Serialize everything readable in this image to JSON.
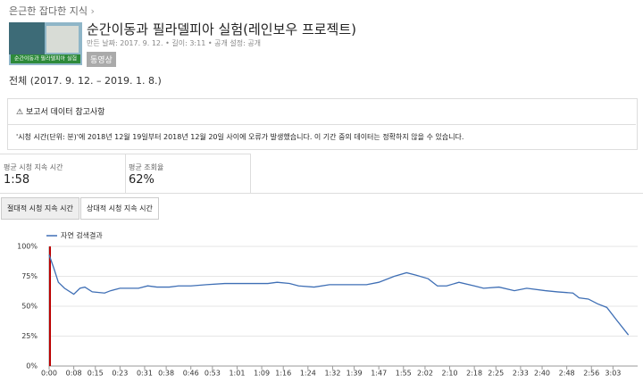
{
  "header": {
    "breadcrumb": "은근한 잡다한 지식",
    "video_title": "순간이동과 필라델피아 실험(레인보우 프로젝트)",
    "meta": "만든 날짜: 2017. 9. 12. • 길이: 3:11 • 공개 설정: 공개",
    "badge": "동영상",
    "thumbnail_caption": "순간이동과 필라델피아 실험"
  },
  "date_range": "전체 (2017. 9. 12. – 2019. 1. 8.)",
  "notice": {
    "title": "보고서 데이터 참고사항",
    "body": "'시청 시간(단위: 분)'에 2018년 12월 19일부터 2018년 12월 20일 사이에 오류가 발생했습니다. 이 기간 중의 데이터는 정확하지 않을 수 있습니다."
  },
  "metrics": [
    {
      "label": "평균 시청 지속 시간",
      "value": "1:58"
    },
    {
      "label": "평균 조회율",
      "value": "62%"
    }
  ],
  "tabs": [
    "절대적 시청 지속 시간",
    "상대적 시청 지속 시간"
  ],
  "chart_data": {
    "type": "line",
    "x": [
      0,
      1.5,
      3,
      5,
      8,
      10,
      11.6,
      14,
      18,
      20,
      23,
      29,
      32,
      35,
      39,
      42,
      46,
      51,
      57,
      62,
      71,
      74,
      78,
      81,
      86,
      91,
      96,
      103,
      107,
      112,
      116,
      119,
      123,
      126,
      129,
      133,
      138,
      141,
      146,
      151,
      155,
      161,
      165,
      170,
      172,
      175,
      178,
      181,
      184,
      188
    ],
    "series": [
      {
        "name": "자연 검색결과",
        "color": "#3f6fb5",
        "values": [
          93,
          82,
          70,
          65,
          60,
          65,
          66,
          62,
          61,
          63,
          65,
          65,
          67,
          66,
          66,
          67,
          67,
          68,
          69,
          69,
          69,
          70,
          69,
          67,
          66,
          68,
          68,
          68,
          70,
          75,
          78,
          76,
          73,
          67,
          67,
          70,
          67,
          65,
          66,
          63,
          65,
          63,
          62,
          61,
          57,
          56,
          52,
          49,
          39,
          26
        ]
      }
    ],
    "xlim": [
      0,
      191
    ],
    "ylim": [
      0,
      100
    ],
    "yticks": [
      {
        "value": 0,
        "label": "0%"
      },
      {
        "value": 25,
        "label": "25%"
      },
      {
        "value": 50,
        "label": "50%"
      },
      {
        "value": 75,
        "label": "75%"
      },
      {
        "value": 100,
        "label": "100%"
      }
    ],
    "xticks": [
      {
        "value": 0,
        "label": "0:00"
      },
      {
        "value": 8,
        "label": "0:08"
      },
      {
        "value": 15,
        "label": "0:15"
      },
      {
        "value": 23,
        "label": "0:23"
      },
      {
        "value": 31,
        "label": "0:31"
      },
      {
        "value": 38,
        "label": "0:38"
      },
      {
        "value": 46,
        "label": "0:46"
      },
      {
        "value": 53,
        "label": "0:53"
      },
      {
        "value": 61,
        "label": "1:01"
      },
      {
        "value": 69,
        "label": "1:09"
      },
      {
        "value": 76,
        "label": "1:16"
      },
      {
        "value": 84,
        "label": "1:24"
      },
      {
        "value": 92,
        "label": "1:32"
      },
      {
        "value": 99,
        "label": "1:39"
      },
      {
        "value": 107,
        "label": "1:47"
      },
      {
        "value": 115,
        "label": "1:55"
      },
      {
        "value": 122,
        "label": "2:02"
      },
      {
        "value": 130,
        "label": "2:10"
      },
      {
        "value": 138,
        "label": "2:18"
      },
      {
        "value": 145,
        "label": "2:25"
      },
      {
        "value": 153,
        "label": "2:33"
      },
      {
        "value": 160,
        "label": "2:40"
      },
      {
        "value": 168,
        "label": "2:48"
      },
      {
        "value": 176,
        "label": "2:56"
      },
      {
        "value": 183,
        "label": "3:03"
      }
    ],
    "grid": true
  }
}
